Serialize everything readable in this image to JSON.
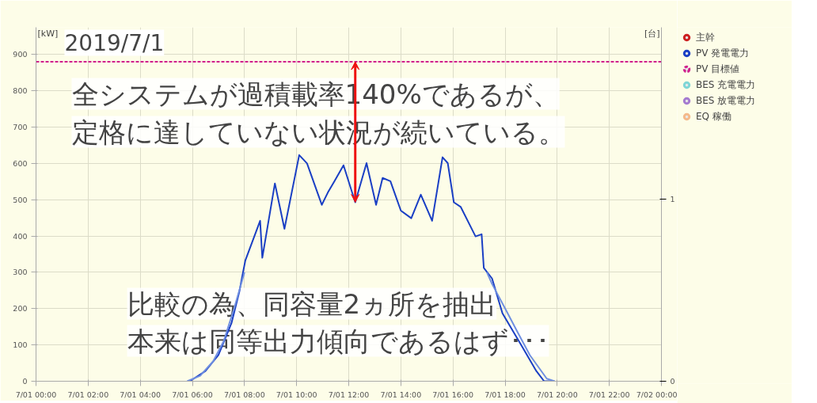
{
  "chart_data": {
    "type": "line",
    "title": "2019/7/1",
    "ylabel": "[kW]",
    "y2label": "[台]",
    "xlim": [
      "2019-07-01T00:00",
      "2019-07-02T00:00"
    ],
    "xticks": [
      {
        "value": "2019-07-01T00:00",
        "label": "7/01 00:00"
      },
      {
        "value": "2019-07-01T02:00",
        "label": "7/01 02:00"
      },
      {
        "value": "2019-07-01T04:00",
        "label": "7/01 04:00"
      },
      {
        "value": "2019-07-01T06:00",
        "label": "7/01 06:00"
      },
      {
        "value": "2019-07-01T08:00",
        "label": "7/01 08:00"
      },
      {
        "value": "2019-07-01T10:00",
        "label": "7/01 10:00"
      },
      {
        "value": "2019-07-01T12:00",
        "label": "7/01 12:00"
      },
      {
        "value": "2019-07-01T14:00",
        "label": "7/01 14:00"
      },
      {
        "value": "2019-07-01T16:00",
        "label": "7/01 16:00"
      },
      {
        "value": "2019-07-01T18:00",
        "label": "7/01 18:00"
      },
      {
        "value": "2019-07-01T20:00",
        "label": "7/01 20:00"
      },
      {
        "value": "2019-07-01T22:00",
        "label": "7/01 22:00"
      },
      {
        "value": "2019-07-02T00:00",
        "label": "7/02 00:00"
      }
    ],
    "ylim": [
      0,
      975
    ],
    "yticks": [
      0,
      100,
      200,
      300,
      400,
      500,
      600,
      700,
      800,
      900
    ],
    "y2lim": [
      0,
      1.94
    ],
    "y2ticks": [
      0,
      1
    ],
    "grid": true,
    "legend": "top right",
    "series": [
      {
        "name": "主幹",
        "color": "#cc1f1f"
      },
      {
        "name": "PV 発電電力",
        "color": "#1a3fc4",
        "x": [
          "2019-07-01T05:54",
          "2019-07-01T06:30",
          "2019-07-01T07:00",
          "2019-07-01T07:30",
          "2019-07-01T07:48",
          "2019-07-01T07:55",
          "2019-07-01T08:02",
          "2019-07-01T08:36",
          "2019-07-01T08:41",
          "2019-07-01T09:10",
          "2019-07-01T09:32",
          "2019-07-01T10:06",
          "2019-07-01T10:24",
          "2019-07-01T10:58",
          "2019-07-01T11:12",
          "2019-07-01T11:27",
          "2019-07-01T11:48",
          "2019-07-01T12:15",
          "2019-07-01T12:41",
          "2019-07-01T13:03",
          "2019-07-01T13:18",
          "2019-07-01T13:36",
          "2019-07-01T14:00",
          "2019-07-01T14:24",
          "2019-07-01T14:46",
          "2019-07-01T15:12",
          "2019-07-01T15:36",
          "2019-07-01T15:48",
          "2019-07-01T16:02",
          "2019-07-01T16:18",
          "2019-07-01T16:52",
          "2019-07-01T17:06",
          "2019-07-01T17:11",
          "2019-07-01T17:30",
          "2019-07-01T17:54",
          "2019-07-01T18:40",
          "2019-07-01T19:12",
          "2019-07-01T19:30",
          "2019-07-01T19:54"
        ],
        "values": [
          0,
          28,
          72,
          160,
          246,
          290,
          333,
          442,
          340,
          545,
          420,
          623,
          600,
          486,
          520,
          551,
          595,
          493,
          601,
          486,
          560,
          551,
          470,
          449,
          514,
          442,
          617,
          601,
          493,
          480,
          399,
          405,
          312,
          283,
          187,
          94,
          28,
          0,
          0
        ]
      },
      {
        "name": "PV 目標値",
        "color": "#d0208c",
        "line_style": "dashed",
        "x": [
          "2019-07-01T00:00",
          "2019-07-02T00:00"
        ],
        "values": [
          880,
          880
        ]
      },
      {
        "name": "BES 充電電力",
        "color": "#7fd6d6"
      },
      {
        "name": "BES 放電電力",
        "color": "#a57bd0"
      },
      {
        "name": "EQ 稼働",
        "color": "#f4b98a"
      },
      {
        "color": "#6f8fe0",
        "x": [
          "2019-07-01T05:48",
          "2019-07-01T06:18",
          "2019-07-01T06:48",
          "2019-07-01T07:12",
          "2019-07-01T07:36",
          "2019-07-01T08:00",
          "2019-07-01T12:00",
          "2019-07-01T17:18",
          "2019-07-01T17:30",
          "2019-07-01T18:06",
          "2019-07-01T18:28",
          "2019-07-01T18:57",
          "2019-07-01T19:36",
          "2019-07-01T19:54"
        ],
        "values": [
          0,
          15,
          55,
          110,
          200,
          300,
          null,
          300,
          268,
          187,
          137,
          72,
          7,
          0
        ]
      }
    ],
    "annotations": [
      {
        "text": "全システムが過積載率140%であるが、",
        "x": "2019-07-01T12:15",
        "y": 880
      },
      "定格に達していない状況が続いている。",
      "比較の為、同容量2ヵ所を抽出",
      "本来は同等出力傾向であるはず･･･"
    ]
  }
}
